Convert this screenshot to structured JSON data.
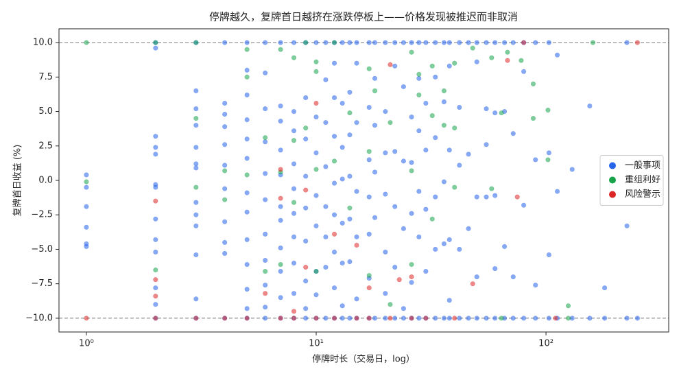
{
  "chart_data": {
    "type": "scatter",
    "title": "停牌越久，复牌首日越挤在涨跌停板上——价格发现被推迟而非取消",
    "x_label": "停牌时长（交易日，log）",
    "y_label": "复牌首日收益 (%)",
    "x_scale": "log",
    "xlim": [
      0.76,
      342
    ],
    "ylim": [
      -11,
      11
    ],
    "xticks": [
      {
        "value": 1,
        "label": "10⁰"
      },
      {
        "value": 10,
        "label": "10¹"
      },
      {
        "value": 100,
        "label": "10²"
      }
    ],
    "yticks": [
      {
        "value": -10,
        "label": "−10.0"
      },
      {
        "value": -7.5,
        "label": "−7.5"
      },
      {
        "value": -5,
        "label": "−5.0"
      },
      {
        "value": -2.5,
        "label": "−2.5"
      },
      {
        "value": 0,
        "label": "0.0"
      },
      {
        "value": 2.5,
        "label": "2.5"
      },
      {
        "value": 5,
        "label": "5.0"
      },
      {
        "value": 7.5,
        "label": "7.5"
      },
      {
        "value": 10,
        "label": "10.0"
      }
    ],
    "hlines": [
      10,
      -10
    ],
    "legend": "center right",
    "series": [
      {
        "name": "一般事项",
        "color": "#2563eb",
        "x": [
          1,
          1,
          1,
          1,
          1,
          1,
          2,
          2,
          2,
          2,
          2,
          2,
          2,
          2,
          2,
          2,
          2,
          2,
          2,
          3,
          3,
          3,
          3,
          3,
          3,
          3,
          3,
          3,
          3,
          3,
          3,
          3,
          4,
          4,
          4,
          4,
          4,
          4,
          4,
          4,
          4,
          4,
          4,
          5,
          5,
          5,
          5,
          5,
          5,
          5,
          5,
          5,
          5,
          5,
          5,
          5,
          6,
          6,
          6,
          6,
          6,
          6,
          6,
          6,
          6,
          6,
          6,
          7,
          7,
          7,
          7,
          7,
          7,
          7,
          7,
          7,
          7,
          7,
          8,
          8,
          8,
          8,
          8,
          8,
          8,
          8,
          8,
          8,
          9,
          9,
          9,
          9,
          9,
          9,
          9,
          9,
          9,
          10,
          10,
          10,
          10,
          10,
          10,
          10,
          10,
          11,
          11,
          11,
          11,
          11,
          11,
          11,
          11,
          12,
          12,
          12,
          12,
          12,
          12,
          12,
          12,
          12,
          13,
          13,
          13,
          13,
          13,
          13,
          13,
          13,
          14,
          14,
          14,
          14,
          14,
          14,
          14,
          15,
          15,
          15,
          15,
          15,
          15,
          15,
          17,
          17,
          17,
          17,
          17,
          17,
          17,
          18,
          18,
          18,
          18,
          18,
          18,
          20,
          20,
          20,
          20,
          20,
          20,
          20,
          22,
          22,
          22,
          22,
          22,
          22,
          24,
          24,
          24,
          24,
          24,
          24,
          26,
          26,
          26,
          26,
          26,
          26,
          28,
          28,
          28,
          28,
          28,
          28,
          30,
          30,
          30,
          30,
          30,
          30,
          33,
          33,
          33,
          33,
          33,
          33,
          36,
          36,
          36,
          36,
          36,
          38,
          38,
          38,
          38,
          38,
          38,
          42,
          42,
          42,
          42,
          42,
          46,
          46,
          46,
          46,
          50,
          50,
          50,
          50,
          50,
          55,
          55,
          55,
          55,
          55,
          60,
          60,
          60,
          60,
          60,
          66,
          66,
          66,
          66,
          72,
          72,
          72,
          72,
          80,
          80,
          80,
          80,
          90,
          90,
          90,
          90,
          103,
          103,
          103,
          103,
          112,
          112,
          112,
          130,
          130,
          155,
          155,
          180,
          180,
          225,
          225,
          225,
          250
        ],
        "values": [
          0.4,
          -0.5,
          -1.9,
          -3.4,
          -4.6,
          -4.8,
          10,
          9.6,
          3.2,
          2.4,
          1.9,
          -0.3,
          -0.5,
          -2.8,
          -4.3,
          -5.2,
          -7.8,
          -9.0,
          -10,
          10,
          6.5,
          5.2,
          4.0,
          2.4,
          1.2,
          0.9,
          -1.6,
          -2.5,
          -3.3,
          -5.4,
          -8.6,
          -10,
          10,
          5.6,
          4.8,
          3.9,
          2.6,
          1.1,
          -0.6,
          -3.0,
          -4.5,
          -5.3,
          -10,
          10,
          8.0,
          6.2,
          4.4,
          3.0,
          1.6,
          -0.9,
          -2.3,
          -4.3,
          -6.1,
          -7.9,
          -9.3,
          -10,
          10,
          7.8,
          5.2,
          2.8,
          0.5,
          -1.4,
          -3.9,
          -5.8,
          -7.6,
          -9.2,
          -10,
          10,
          5.4,
          4.3,
          2.2,
          0.4,
          -1.9,
          -2.9,
          -4.9,
          -6.6,
          -8.5,
          -10,
          10,
          5.0,
          3.6,
          1.2,
          -0.6,
          -2.4,
          -4.1,
          -6.0,
          -8.2,
          -10,
          10,
          6.0,
          3.0,
          0.3,
          -2.0,
          -4.4,
          -7.3,
          -9.3,
          -10,
          10,
          4.6,
          2.0,
          -1.1,
          -3.3,
          -6.6,
          -8.3,
          -10,
          10,
          7.3,
          4.2,
          1.0,
          -1.9,
          -4.1,
          -6.3,
          -10,
          10,
          8.5,
          6.0,
          3.2,
          -0.2,
          -2.5,
          -5.2,
          -7.8,
          -10,
          10,
          5.6,
          2.4,
          0.1,
          -3.1,
          -6.0,
          -9.1,
          -10,
          10,
          6.4,
          3.3,
          0.3,
          -2.8,
          -5.9,
          -10,
          10,
          8.5,
          4.2,
          -0.8,
          -4.1,
          -8.6,
          -10,
          10,
          5.3,
          1.5,
          -1.2,
          -3.9,
          -7.1,
          -10,
          10,
          7.4,
          4.0,
          0.6,
          -2.7,
          -10,
          10,
          5.0,
          2.0,
          -1.0,
          -5.2,
          -8.2,
          -10,
          10,
          8.3,
          2.1,
          -1.9,
          -6.3,
          -10,
          10,
          6.8,
          1.4,
          -3.5,
          -9.3,
          -10,
          10,
          4.6,
          1.3,
          -2.4,
          -7.4,
          -10,
          10,
          7.4,
          3.6,
          -0.8,
          -4.1,
          -10,
          10,
          5.6,
          2.2,
          -2.1,
          -6.6,
          -10,
          10,
          7.5,
          3.1,
          -1.2,
          -5.0,
          -10,
          10,
          5.7,
          -0.1,
          -4.6,
          -10,
          10,
          8.3,
          2.2,
          -4.3,
          -8.7,
          -10,
          10,
          5.3,
          1.1,
          -5.0,
          -10,
          10,
          1.9,
          -3.5,
          -10,
          10,
          8.6,
          -1.2,
          -7.0,
          -10,
          10,
          5.2,
          2.6,
          -1.2,
          -10,
          10,
          4.9,
          -1.1,
          -6.4,
          -10,
          10,
          5.0,
          -4.8,
          -10,
          10,
          3.4,
          -7.0,
          -10,
          10,
          7.9,
          -1.8,
          -10,
          10,
          1.5,
          -7.6,
          -10,
          10,
          2.0,
          -5.4,
          -10,
          9.1,
          -0.8,
          -10,
          0.8,
          -10,
          5.4,
          -10,
          -7.8,
          -10,
          10,
          -3.3,
          -10,
          -10
        ]
      },
      {
        "name": "重组利好",
        "color": "#16a34a",
        "x": [
          1,
          1,
          2,
          2,
          3,
          3,
          3,
          4,
          4,
          5,
          5,
          5,
          6,
          6,
          7,
          7,
          7,
          8,
          8,
          8,
          9,
          9,
          10,
          10,
          10,
          10,
          12,
          12,
          14,
          14,
          17,
          17,
          17,
          18,
          21,
          21,
          26,
          26,
          26,
          28,
          28,
          32,
          32,
          32,
          36,
          36,
          40,
          40,
          40,
          48,
          58,
          58,
          64,
          64,
          68,
          78,
          88,
          88,
          102,
          102,
          125,
          125,
          160
        ],
        "values": [
          10,
          -0.1,
          10,
          -6.5,
          10,
          4.5,
          -0.5,
          0.7,
          -1.4,
          9.5,
          7.5,
          0.4,
          3.1,
          -6.6,
          9.5,
          0.6,
          -6.1,
          8.9,
          2.9,
          -1.6,
          10,
          3.8,
          8.6,
          7.9,
          0.8,
          -6.6,
          10,
          1.4,
          4.9,
          -2.0,
          8.1,
          2.1,
          -6.9,
          6.5,
          4.2,
          -9.0,
          9.3,
          0.7,
          -6.1,
          7.7,
          6.2,
          4.7,
          8.3,
          -2.8,
          6.5,
          4.0,
          8.5,
          3.8,
          -0.5,
          9.6,
          8.9,
          -0.6,
          4.9,
          -10,
          9.3,
          8.7,
          7.0,
          4.5,
          5.1,
          1.5,
          -9.1,
          -10,
          10
        ]
      },
      {
        "name": "风险警示",
        "color": "#dc2626",
        "x": [
          1,
          2,
          2,
          2,
          2,
          3,
          4,
          5,
          6,
          7,
          7,
          7,
          8,
          8,
          9,
          9,
          10,
          10,
          12,
          12,
          15,
          15,
          17,
          17,
          21,
          21,
          23,
          26,
          26,
          30,
          40,
          48,
          68,
          75,
          80,
          110,
          250
        ],
        "values": [
          -10,
          -10,
          -1.5,
          -7.2,
          -8.4,
          -10,
          -10,
          -10,
          -8.2,
          -10,
          -1.3,
          0.8,
          -10,
          -9.5,
          -0.7,
          -6.3,
          5.6,
          -10,
          -3.9,
          -10,
          -4.7,
          -10,
          -7.8,
          -10,
          8.4,
          -10,
          -7.2,
          -10,
          -7.0,
          -10,
          -10,
          -7.5,
          8.7,
          -1.2,
          10,
          -10,
          10
        ]
      }
    ]
  }
}
